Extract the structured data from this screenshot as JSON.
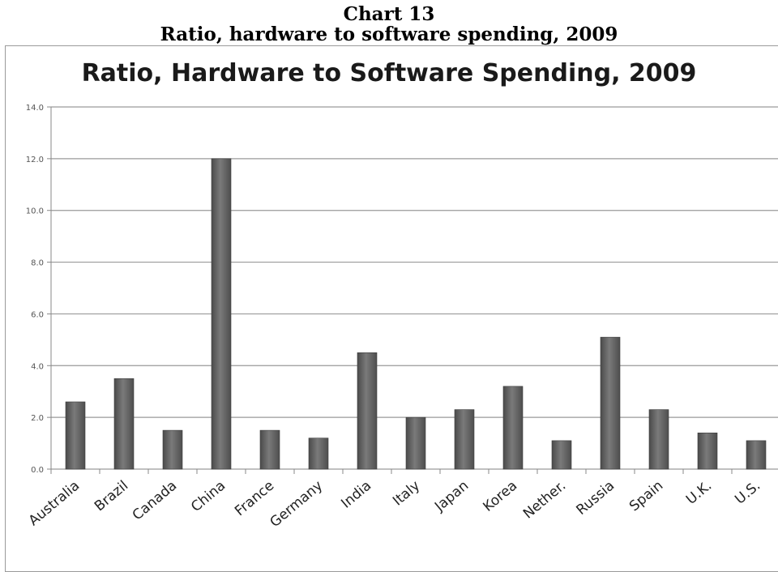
{
  "captions": {
    "heading": "Chart 13",
    "subheading": "Ratio, hardware to software spending, 2009"
  },
  "chart_data": {
    "type": "bar",
    "title": "Ratio, Hardware to Software Spending, 2009",
    "xlabel": "",
    "ylabel": "",
    "ylim": [
      0,
      14
    ],
    "yticks": [
      "0.0",
      "2.0",
      "4.0",
      "6.0",
      "8.0",
      "10.0",
      "12.0",
      "14.0"
    ],
    "grid": true,
    "categories": [
      "Australia",
      "Brazil",
      "Canada",
      "China",
      "France",
      "Germany",
      "India",
      "Italy",
      "Japan",
      "Korea",
      "Nether.",
      "Russia",
      "Spain",
      "U.K.",
      "U.S."
    ],
    "values": [
      2.6,
      3.5,
      1.5,
      12.0,
      1.5,
      1.2,
      4.5,
      2.0,
      2.3,
      3.2,
      1.1,
      5.1,
      2.3,
      1.4,
      1.1
    ],
    "bar_color": "#5e5e5e"
  }
}
